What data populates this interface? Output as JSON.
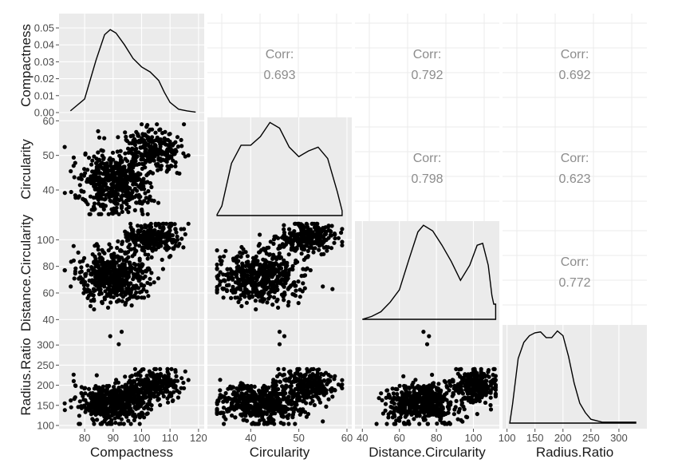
{
  "chart_data": {
    "type": "scatter",
    "variables": [
      "Compactness",
      "Circularity",
      "Distance.Circularity",
      "Radius.Ratio"
    ],
    "axis_ticks": {
      "Compactness": [
        "80",
        "90",
        "100",
        "110",
        "120"
      ],
      "Circularity": [
        "40",
        "50",
        "60"
      ],
      "Distance.Circularity": [
        "40",
        "60",
        "80",
        "100"
      ],
      "Radius.Ratio": [
        "100",
        "150",
        "200",
        "250",
        "300"
      ]
    },
    "density_ticks": [
      "0.00",
      "0.01",
      "0.02",
      "0.03",
      "0.04",
      "0.05"
    ],
    "correlations": [
      {
        "row": "Compactness",
        "col": "Circularity",
        "label": "Corr:",
        "value": "0.693"
      },
      {
        "row": "Compactness",
        "col": "Distance.Circularity",
        "label": "Corr:",
        "value": "0.792"
      },
      {
        "row": "Compactness",
        "col": "Radius.Ratio",
        "label": "Corr:",
        "value": "0.692"
      },
      {
        "row": "Circularity",
        "col": "Distance.Circularity",
        "label": "Corr:",
        "value": "0.798"
      },
      {
        "row": "Circularity",
        "col": "Radius.Ratio",
        "label": "Corr:",
        "value": "0.623"
      },
      {
        "row": "Distance.Circularity",
        "col": "Radius.Ratio",
        "label": "Corr:",
        "value": "0.772"
      }
    ],
    "densities": {
      "Compactness": {
        "x": [
          75,
          80,
          84,
          87,
          89,
          91,
          94,
          97,
          100,
          103,
          106,
          108,
          110,
          113,
          116,
          118,
          119
        ],
        "y": [
          0.001,
          0.008,
          0.031,
          0.046,
          0.049,
          0.047,
          0.04,
          0.032,
          0.027,
          0.024,
          0.019,
          0.012,
          0.006,
          0.002,
          0.001,
          0.0005,
          0.0003
        ]
      },
      "Circularity": {
        "x": [
          33,
          34,
          36,
          38,
          40,
          42,
          44,
          46,
          48,
          50,
          52,
          54,
          56,
          58,
          59
        ],
        "y": [
          0.01,
          0.1,
          0.55,
          0.74,
          0.74,
          0.83,
          0.98,
          0.92,
          0.72,
          0.62,
          0.68,
          0.72,
          0.6,
          0.25,
          0.05
        ]
      },
      "Distance.Circularity": {
        "x": [
          40,
          45,
          50,
          55,
          60,
          65,
          70,
          73,
          78,
          83,
          88,
          93,
          98,
          102,
          105,
          108,
          110,
          111,
          112
        ],
        "y": [
          0.0,
          0.03,
          0.08,
          0.18,
          0.31,
          0.62,
          0.92,
          0.99,
          0.93,
          0.78,
          0.61,
          0.41,
          0.57,
          0.78,
          0.8,
          0.57,
          0.25,
          0.16,
          0.16
        ]
      },
      "Radius.Ratio": {
        "x": [
          105,
          110,
          120,
          130,
          140,
          150,
          160,
          170,
          180,
          190,
          200,
          210,
          220,
          230,
          240,
          250,
          270,
          300,
          330
        ],
        "y": [
          0.0,
          0.2,
          0.68,
          0.85,
          0.92,
          0.95,
          0.96,
          0.9,
          0.9,
          0.97,
          0.92,
          0.7,
          0.42,
          0.21,
          0.11,
          0.04,
          0.01,
          0.01,
          0.01
        ]
      }
    },
    "outliers_radius": [
      {
        "Compactness": 89,
        "Circularity": 47,
        "Distance.Circularity": 76,
        "Radius.Ratio": 322
      },
      {
        "Compactness": 93,
        "Circularity": 46,
        "Distance.Circularity": 73,
        "Radius.Ratio": 333
      },
      {
        "Compactness": 92,
        "Circularity": 46,
        "Distance.Circularity": 75,
        "Radius.Ratio": 302
      }
    ],
    "grid": true
  }
}
